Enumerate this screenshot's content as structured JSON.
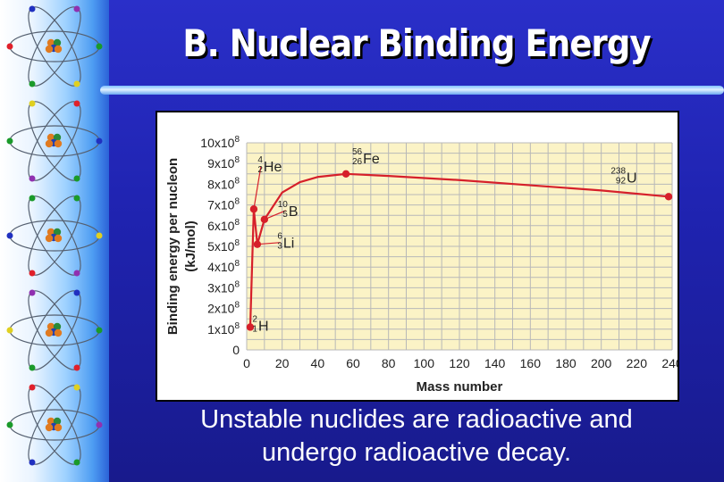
{
  "slide": {
    "title": "B. Nuclear Binding Energy",
    "caption_line1": "Unstable nuclides are radioactive and",
    "caption_line2": "undergo radioactive decay."
  },
  "colors": {
    "background": "#1f23b0",
    "plot_background": "#fbf3c6",
    "curve": "#d6202a",
    "grid": "#b8b8b8"
  },
  "icons": [
    "atom-icon"
  ],
  "chart_data": {
    "type": "line",
    "xlabel": "Mass number",
    "ylabel_line1": "Binding energy per nucleon",
    "ylabel_line2": "(kJ/mol)",
    "xlim": [
      0,
      240
    ],
    "ylim": [
      0,
      1000000000.0
    ],
    "x_ticks": [
      "0",
      "20",
      "40",
      "60",
      "80",
      "100",
      "120",
      "140",
      "160",
      "180",
      "200",
      "220",
      "240"
    ],
    "y_ticks": [
      "0",
      "1x10⁸",
      "2x10⁸",
      "3x10⁸",
      "4x10⁸",
      "5x10⁸",
      "6x10⁸",
      "7x10⁸",
      "8x10⁸",
      "9x10⁸",
      "10x10⁸"
    ],
    "grid": true,
    "curve": {
      "x": [
        2,
        4,
        6,
        10,
        20,
        30,
        40,
        56,
        80,
        120,
        160,
        200,
        238
      ],
      "y": [
        110000000.0,
        680000000.0,
        510000000.0,
        630000000.0,
        760000000.0,
        810000000.0,
        835000000.0,
        850000000.0,
        840000000.0,
        820000000.0,
        795000000.0,
        770000000.0,
        740000000.0
      ]
    },
    "points": [
      {
        "symbol": "H",
        "mass": "2",
        "atomic": "1",
        "x": 2,
        "y": 110000000.0
      },
      {
        "symbol": "He",
        "mass": "4",
        "atomic": "2",
        "x": 4,
        "y": 680000000.0
      },
      {
        "symbol": "Li",
        "mass": "6",
        "atomic": "3",
        "x": 6,
        "y": 510000000.0
      },
      {
        "symbol": "B",
        "mass": "10",
        "atomic": "5",
        "x": 10,
        "y": 630000000.0
      },
      {
        "symbol": "Fe",
        "mass": "56",
        "atomic": "26",
        "x": 56,
        "y": 850000000.0
      },
      {
        "symbol": "U",
        "mass": "238",
        "atomic": "92",
        "x": 238,
        "y": 740000000.0
      }
    ]
  }
}
